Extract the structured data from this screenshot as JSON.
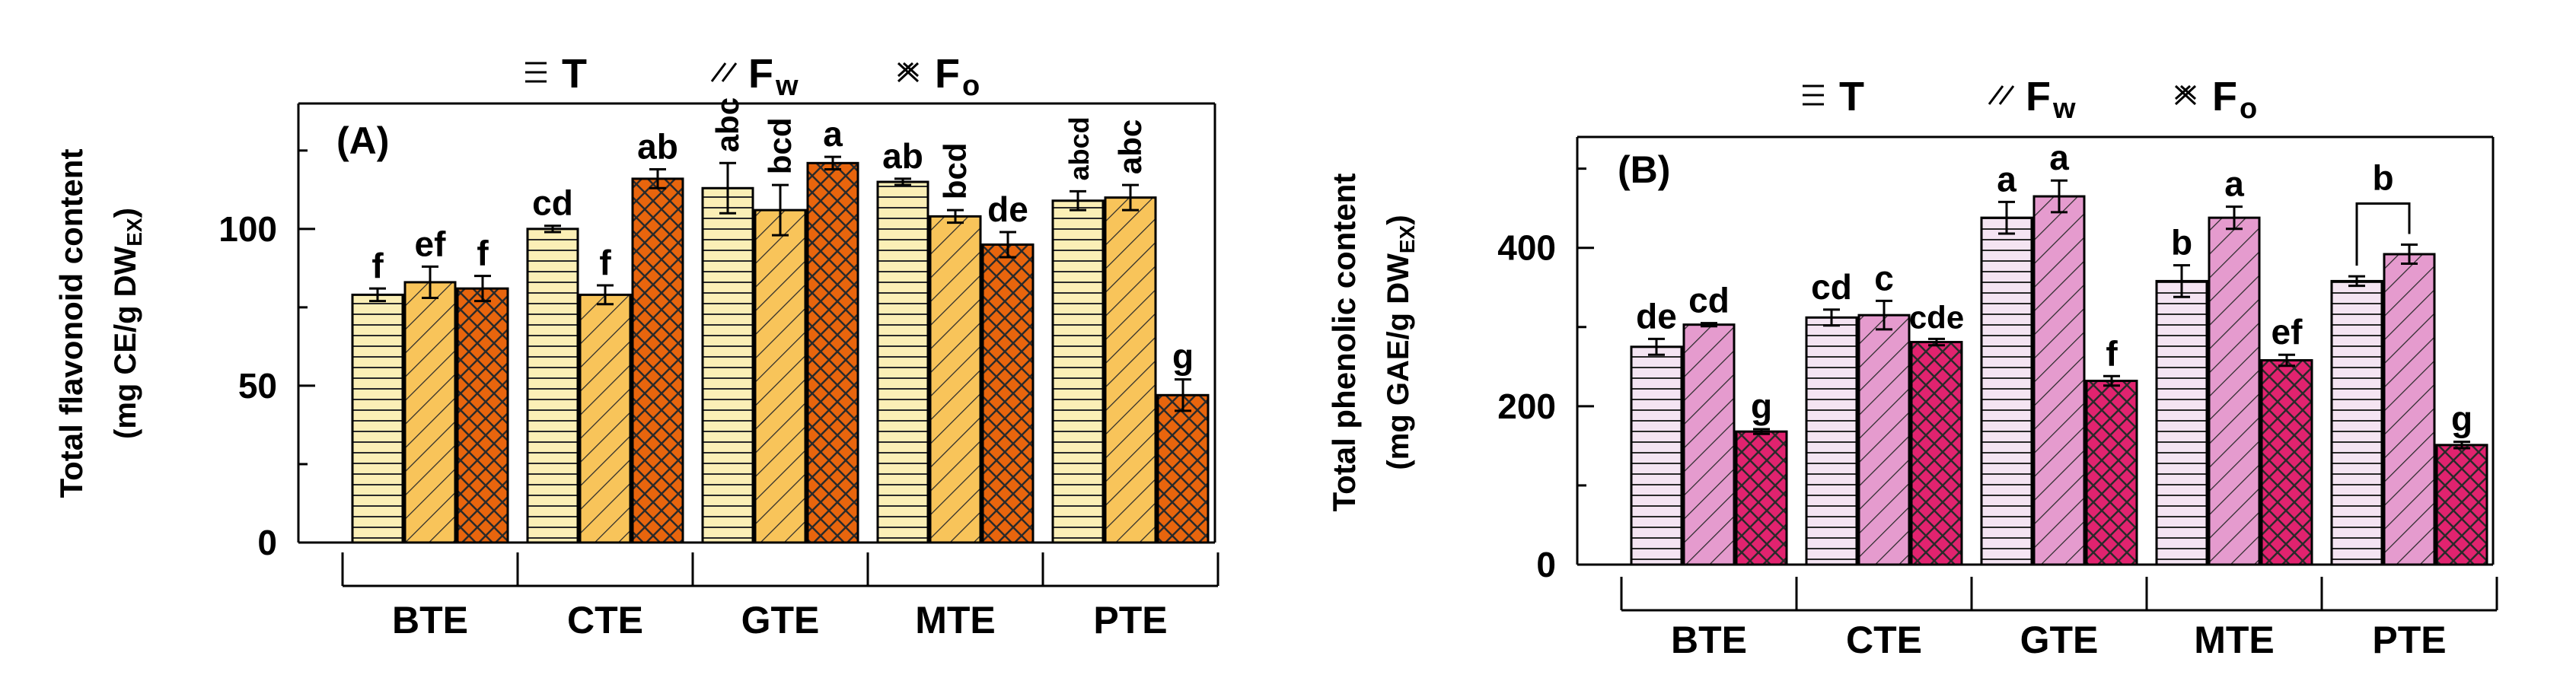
{
  "legend": [
    {
      "key": "T",
      "label": "T",
      "sub": "",
      "pattern": "horizontal-lines-icon"
    },
    {
      "key": "Fw",
      "label": "F",
      "sub": "w",
      "pattern": "diagonal-lines-icon"
    },
    {
      "key": "Fo",
      "label": "F",
      "sub": "o",
      "pattern": "crosshatch-icon"
    }
  ],
  "chart_data": [
    {
      "type": "bar",
      "panel_label": "(A)",
      "ylabel_line1": "Total flavonoid content",
      "ylabel_line2_main": "(mg CE/g DW",
      "ylabel_line2_sub": "EX",
      "ylabel_line2_end": ")",
      "ylim": [
        0,
        140
      ],
      "yticks": [
        0,
        50,
        100
      ],
      "categories": [
        "BTE",
        "CTE",
        "GTE",
        "MTE",
        "PTE"
      ],
      "colors": {
        "T": "#fbefb6",
        "Fw": "#f8c45a",
        "Fo": "#e8650d"
      },
      "series": [
        {
          "name": "T",
          "values": [
            79,
            100,
            113,
            115,
            109
          ],
          "errors": [
            2,
            1,
            8,
            1,
            3
          ],
          "labels": [
            "f",
            "cd",
            "abc",
            "ab",
            "abcd"
          ]
        },
        {
          "name": "Fw",
          "values": [
            83,
            79,
            106,
            104,
            110
          ],
          "errors": [
            5,
            3,
            8,
            2,
            4
          ],
          "labels": [
            "ef",
            "f",
            "bcd",
            "bcd",
            "abc"
          ]
        },
        {
          "name": "Fo",
          "values": [
            81,
            116,
            121,
            95,
            47
          ],
          "errors": [
            4,
            3,
            2,
            4,
            5
          ],
          "labels": [
            "f",
            "ab",
            "a",
            "de",
            "g"
          ]
        }
      ]
    },
    {
      "type": "bar",
      "panel_label": "(B)",
      "ylabel_line1": "Total phenolic content",
      "ylabel_line2_main": "(mg GAE/g DW",
      "ylabel_line2_sub": "EX",
      "ylabel_line2_end": ")",
      "ylim": [
        0,
        540
      ],
      "yticks": [
        0,
        200,
        400
      ],
      "categories": [
        "BTE",
        "CTE",
        "GTE",
        "MTE",
        "PTE"
      ],
      "colors": {
        "T": "#f4e4f2",
        "Fw": "#e59bce",
        "Fo": "#e1236f"
      },
      "series": [
        {
          "name": "T",
          "values": [
            275,
            312,
            438,
            358,
            358
          ],
          "errors": [
            10,
            10,
            20,
            20,
            6
          ],
          "labels": [
            "de",
            "cd",
            "a",
            "b",
            ""
          ]
        },
        {
          "name": "Fw",
          "values": [
            303,
            315,
            465,
            438,
            392
          ],
          "errors": [
            2,
            18,
            20,
            14,
            12
          ],
          "labels": [
            "cd",
            "c",
            "a",
            "a",
            ""
          ]
        },
        {
          "name": "Fo",
          "values": [
            168,
            281,
            232,
            258,
            151
          ],
          "errors": [
            3,
            4,
            6,
            7,
            4
          ],
          "labels": [
            "g",
            "cde",
            "f",
            "ef",
            "g"
          ]
        }
      ],
      "bracket_label": "b"
    }
  ]
}
